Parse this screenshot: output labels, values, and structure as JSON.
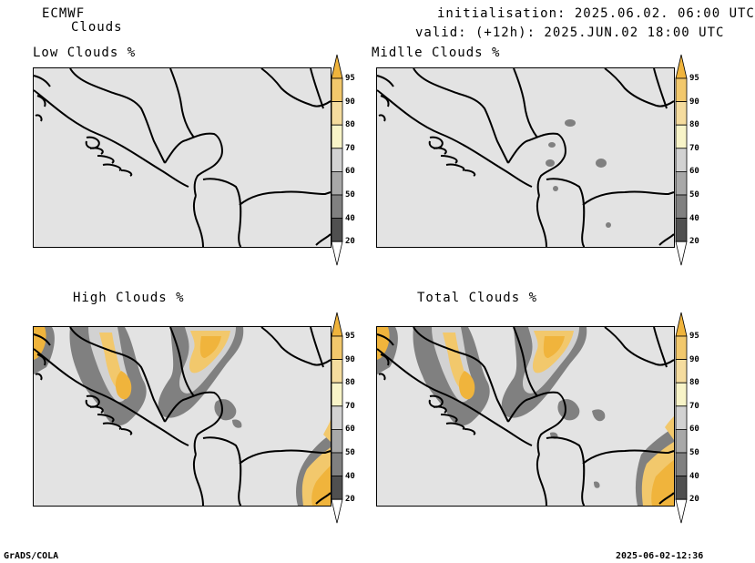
{
  "header": {
    "model": "ECMWF",
    "product": "Clouds",
    "init": "initialisation: 2025.06.02. 06:00 UTC",
    "valid": "valid: (+12h): 2025.JUN.02 18:00 UTC"
  },
  "panels": [
    {
      "title": "Low Clouds %"
    },
    {
      "title": "Midlle Clouds %"
    },
    {
      "title": "High Clouds %"
    },
    {
      "title": "Total Clouds %"
    }
  ],
  "colorbar": {
    "labels": [
      "95",
      "90",
      "80",
      "70",
      "60",
      "50",
      "40",
      "20"
    ],
    "colors": [
      "#f0b43c",
      "#f2c86c",
      "#f5dc9e",
      "#f8f4c8",
      "#d2d2d2",
      "#a8a8a8",
      "#808080",
      "#505050",
      "#ffffff"
    ]
  },
  "footer": {
    "left": "GrADS/COLA",
    "right": "2025-06-02-12:36"
  }
}
